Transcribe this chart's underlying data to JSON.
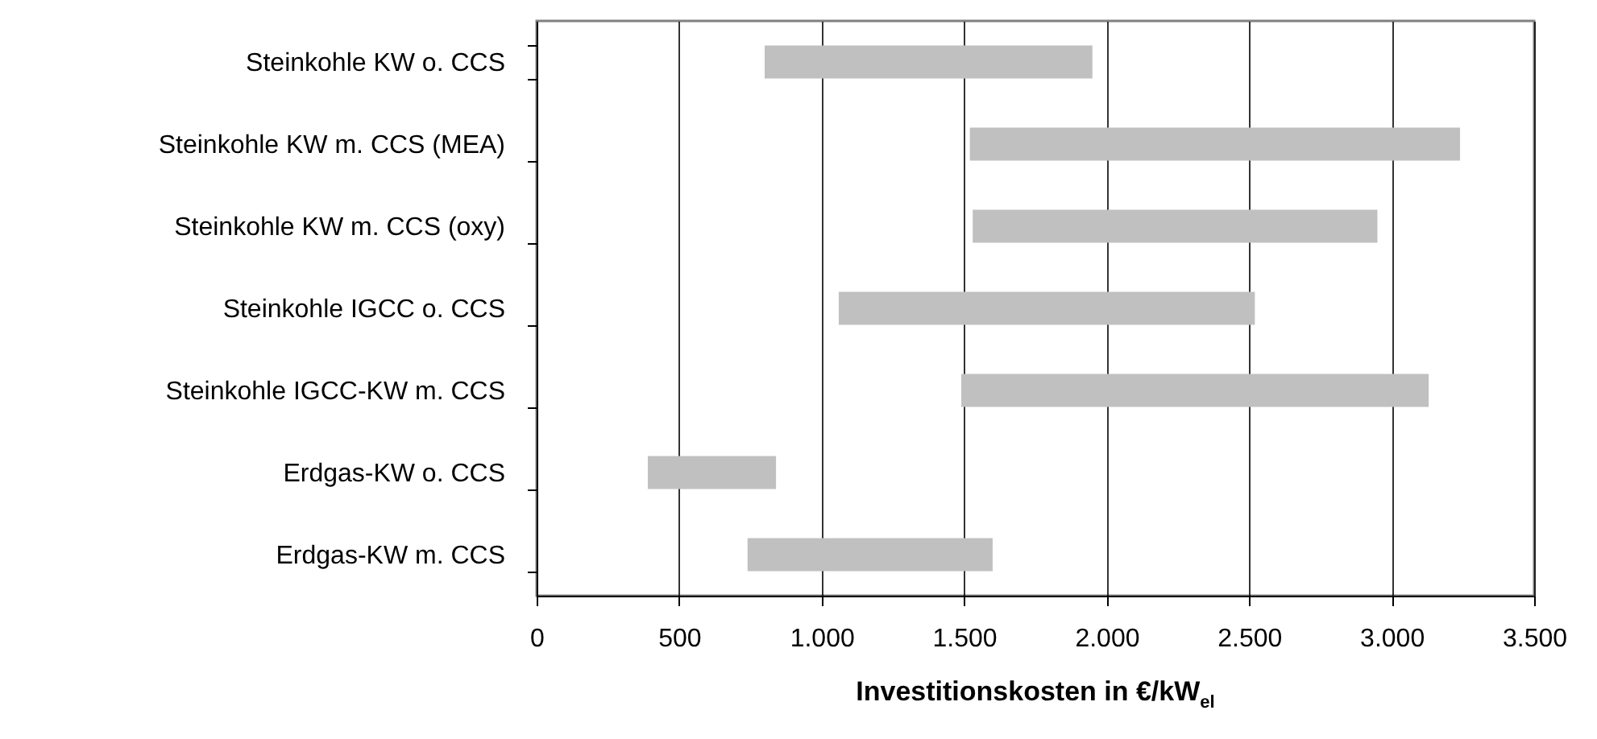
{
  "chart_data": {
    "type": "bar",
    "orientation": "horizontal",
    "xlabel": "Investitionskosten in €/kW$_{el}$",
    "categories": [
      "Steinkohle KW o. CCS",
      "Steinkohle KW m. CCS (MEA)",
      "Steinkohle KW m. CCS (oxy)",
      "Steinkohle IGCC o. CCS",
      "Steinkohle IGCC-KW m. CCS",
      "Erdgas-KW o. CCS",
      "Erdgas-KW m. CCS"
    ],
    "base": [
      800,
      1520,
      1530,
      1060,
      1490,
      390,
      740
    ],
    "values": [
      1150,
      1720,
      1420,
      1460,
      1640,
      450,
      860
    ],
    "color": "#c0c0c0",
    "xlim": [
      0,
      3500
    ],
    "xticks": [
      {
        "value": 0,
        "label": "0"
      },
      {
        "value": 500,
        "label": "500"
      },
      {
        "value": 1000,
        "label": "1.000"
      },
      {
        "value": 1500,
        "label": "1.500"
      },
      {
        "value": 2000,
        "label": "2.000"
      },
      {
        "value": 2500,
        "label": "2.500"
      },
      {
        "value": 3000,
        "label": "3.000"
      },
      {
        "value": 3500,
        "label": "3.500"
      }
    ],
    "grid": "x"
  }
}
